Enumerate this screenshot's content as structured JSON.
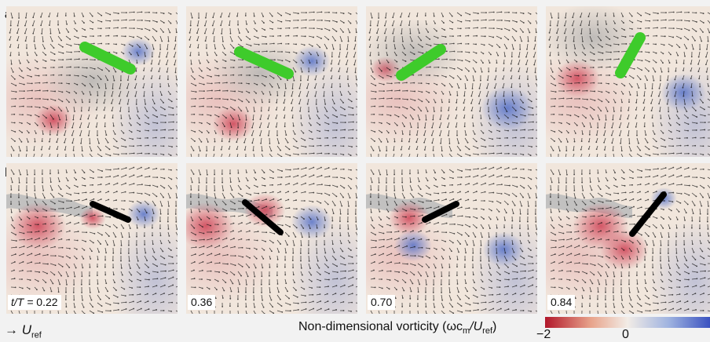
{
  "rows": [
    {
      "label": "a"
    },
    {
      "label": "b"
    }
  ],
  "time_label_prefix": "t/T = ",
  "time_values": [
    "0.22",
    "0.36",
    "0.70",
    "0.84"
  ],
  "uref": {
    "arrow": "→",
    "symbol": "U",
    "subscript": "ref"
  },
  "colorbar": {
    "label": "Non-dimensional vorticity (ωc",
    "label_sub1": "m",
    "label_mid": "/U",
    "label_sub2": "ref",
    "label_end": ")",
    "ticks": [
      "−2",
      "0"
    ],
    "colors": [
      "#b2182b",
      "#e8a48c",
      "#f2ece6",
      "#9fb3e0",
      "#3a52c0"
    ]
  },
  "colors": {
    "background": "#f1e6dc",
    "positive_vortex": "#d0485a",
    "negative_vortex": "#5470c8",
    "wing_tracked": "#3ecb2b",
    "wing_model": "#000000",
    "smoke": "#a9a9a9"
  }
}
